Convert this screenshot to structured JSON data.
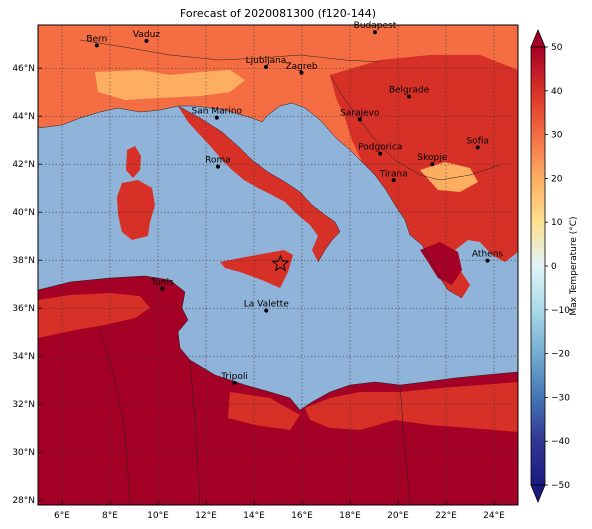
{
  "title": "Forecast of 2020081300 (f120-144)",
  "colorbar": {
    "label": "Max Temperature (°C)",
    "ticks": [
      "50",
      "40",
      "30",
      "20",
      "10",
      "0",
      "−10",
      "−20",
      "−30",
      "−40",
      "−50"
    ],
    "range": [
      -50,
      50
    ],
    "colors": [
      "#a50026",
      "#c8102e",
      "#d73027",
      "#f46d43",
      "#fdae61",
      "#fee090",
      "#e0f3f8",
      "#abd9e9",
      "#74add1",
      "#4575b4",
      "#313695",
      "#1a1a80"
    ]
  },
  "axes": {
    "lon_labels": [
      "6°E",
      "8°E",
      "10°E",
      "12°E",
      "14°E",
      "16°E",
      "18°E",
      "20°E",
      "22°E",
      "24°E"
    ],
    "lat_labels": [
      "46°N",
      "44°N",
      "42°N",
      "40°N",
      "38°N",
      "36°N",
      "34°N",
      "32°N",
      "30°N",
      "28°N"
    ],
    "lon_range": [
      5,
      25
    ],
    "lat_range": [
      27.8,
      47.8
    ]
  },
  "map_colors": {
    "sea": "#8fb3d9",
    "land_hot": "#a50026",
    "land_warm": "#d73027",
    "land_mild": "#f46d43",
    "land_cool": "#fdae61"
  },
  "cities": [
    {
      "name": "Bern",
      "lon": 7.45,
      "lat": 46.95
    },
    {
      "name": "Vaduz",
      "lon": 9.52,
      "lat": 47.14
    },
    {
      "name": "Budapest",
      "lon": 19.04,
      "lat": 47.5
    },
    {
      "name": "Ljubljana",
      "lon": 14.5,
      "lat": 46.05
    },
    {
      "name": "Zagreb",
      "lon": 15.98,
      "lat": 45.81
    },
    {
      "name": "Belgrade",
      "lon": 20.46,
      "lat": 44.82
    },
    {
      "name": "San Marino",
      "lon": 12.45,
      "lat": 43.94
    },
    {
      "name": "Sarajevo",
      "lon": 18.41,
      "lat": 43.86
    },
    {
      "name": "Sofia",
      "lon": 23.32,
      "lat": 42.7
    },
    {
      "name": "Podgorica",
      "lon": 19.26,
      "lat": 42.44
    },
    {
      "name": "Skopje",
      "lon": 21.43,
      "lat": 42.0
    },
    {
      "name": "Roma",
      "lon": 12.5,
      "lat": 41.9
    },
    {
      "name": "Tirana",
      "lon": 19.82,
      "lat": 41.33
    },
    {
      "name": "Athens",
      "lon": 23.73,
      "lat": 37.98
    },
    {
      "name": "Tunis",
      "lon": 10.18,
      "lat": 36.81
    },
    {
      "name": "La Valette",
      "lon": 14.51,
      "lat": 35.9
    },
    {
      "name": "Tripoli",
      "lon": 13.19,
      "lat": 32.89
    }
  ],
  "marker": {
    "symbol": "star",
    "lon": 15.1,
    "lat": 37.85
  }
}
